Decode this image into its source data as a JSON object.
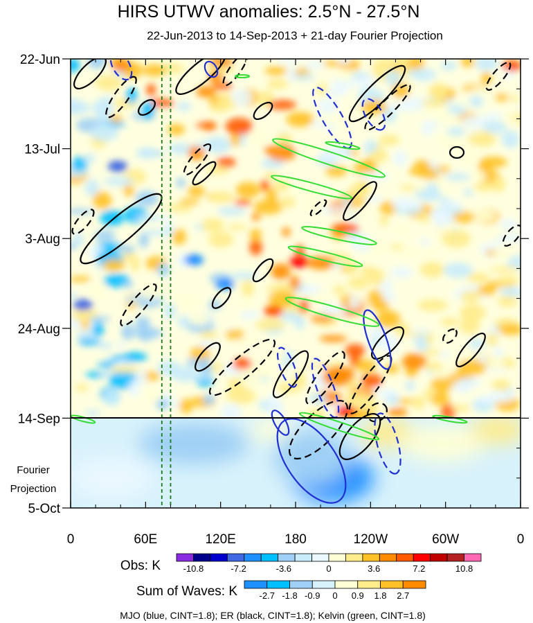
{
  "chart_data": {
    "type": "heatmap",
    "title": "HIRS UTWV anomalies: 2.5°N - 27.5°N",
    "subtitle": "22-Jun-2013 to 14-Sep-2013 + 21-day Fourier Projection",
    "x_ticks": [
      "0",
      "60E",
      "120E",
      "180",
      "120W",
      "60W",
      "0"
    ],
    "x_tick_lon": [
      0,
      60,
      120,
      180,
      240,
      300,
      360
    ],
    "xlim": [
      0,
      360
    ],
    "y_ticks": [
      "22-Jun",
      "13-Jul",
      "3-Aug",
      "24-Aug",
      "14-Sep",
      "5-Oct"
    ],
    "y_tick_day": [
      0,
      21,
      42,
      63,
      84,
      105
    ],
    "ylim": [
      0,
      105
    ],
    "projection_label": [
      "Fourier",
      "Projection"
    ],
    "projection_start": "14-Sep",
    "obs_colorbar": {
      "label": "Obs: K",
      "levels": [
        "-10.8",
        "-7.2",
        "-3.6",
        "0",
        "3.6",
        "7.2",
        "10.8"
      ],
      "colors": [
        "#8a2be2",
        "#00008b",
        "#0000cd",
        "#4169e1",
        "#1e90ff",
        "#00bfff",
        "#9fd0f5",
        "#c9ecfb",
        "#eaf8ff",
        "#ffffd6",
        "#ffec8b",
        "#ffc125",
        "#ff8c00",
        "#ff5a00",
        "#ff0000",
        "#c00000",
        "#b22222",
        "#ff69b4"
      ]
    },
    "waves_colorbar": {
      "label": "Sum of Waves: K",
      "levels": [
        "-2.7",
        "-1.8",
        "-0.9",
        "0",
        "0.9",
        "1.8",
        "2.7"
      ],
      "colors": [
        "#1e90ff",
        "#00bfff",
        "#9fd0f5",
        "#d8f2fb",
        "#ffffd6",
        "#ffec8b",
        "#ffc125",
        "#ff8c00"
      ]
    },
    "footnote": "MJO (blue, CINT=1.8); ER (black, CINT=1.8); Kelvin (green, CINT=1.8)",
    "wave_colors": {
      "MJO": "#1f2fd0",
      "ER": "#000000",
      "Kelvin": "#33dd33"
    },
    "reference_lon_lines": [
      73,
      80
    ]
  }
}
